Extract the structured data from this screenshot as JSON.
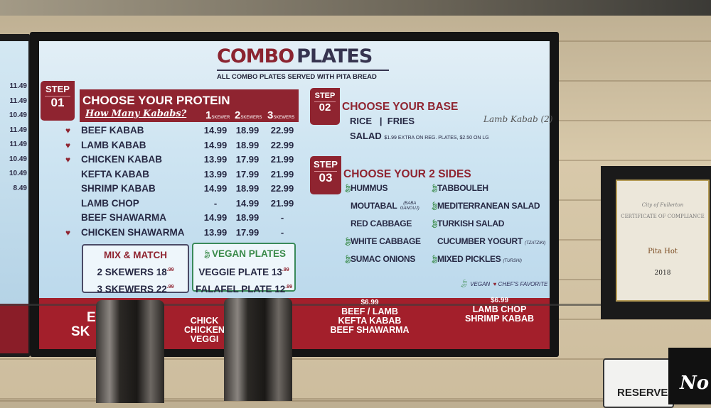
{
  "header": {
    "title_a": "COMBO",
    "title_b": "PLATES",
    "subtitle": "ALL COMBO PLATES SERVED WITH PITA BREAD"
  },
  "step1": {
    "label": "STEP",
    "num": "01",
    "title": "CHOOSE YOUR PROTEIN",
    "question": "How Many Kababs?",
    "columns": [
      {
        "n": "1",
        "unit": "SKEWER"
      },
      {
        "n": "2",
        "unit": "SKEWERS"
      },
      {
        "n": "3",
        "unit": "SKEWERS"
      }
    ],
    "items": [
      {
        "name": "BEEF KABAB",
        "fav": true,
        "prices": [
          "14.99",
          "18.99",
          "22.99"
        ]
      },
      {
        "name": "LAMB KABAB",
        "fav": true,
        "prices": [
          "14.99",
          "18.99",
          "22.99"
        ]
      },
      {
        "name": "CHICKEN KABAB",
        "fav": true,
        "prices": [
          "13.99",
          "17.99",
          "21.99"
        ]
      },
      {
        "name": "KEFTA KABAB",
        "fav": false,
        "prices": [
          "13.99",
          "17.99",
          "21.99"
        ]
      },
      {
        "name": "SHRIMP KABAB",
        "fav": false,
        "prices": [
          "14.99",
          "18.99",
          "22.99"
        ]
      },
      {
        "name": "LAMB CHOP",
        "fav": false,
        "prices": [
          "-",
          "14.99",
          "21.99"
        ]
      },
      {
        "name": "BEEF SHAWARMA",
        "fav": false,
        "prices": [
          "14.99",
          "18.99",
          "-"
        ]
      },
      {
        "name": "CHICKEN SHAWARMA",
        "fav": true,
        "prices": [
          "13.99",
          "17.99",
          "-"
        ]
      }
    ]
  },
  "mix": {
    "title": "MIX & MATCH",
    "l1": "2 SKEWERS",
    "p1": "18",
    "c1": ".99",
    "l2": "3 SKEWERS",
    "p2": "22",
    "c2": ".99"
  },
  "vegan": {
    "title": "VEGAN PLATES",
    "l1": "VEGGIE PLATE",
    "p1": "13",
    "c1": ".99",
    "l2": "FALAFEL PLATE",
    "p2": "12",
    "c2": ".99"
  },
  "step2": {
    "label": "STEP",
    "num": "02",
    "title": "CHOOSE YOUR BASE",
    "opt1": "RICE",
    "sep": "|",
    "opt2": "FRIES",
    "salad": "SALAD",
    "salad_note": "$1.99 EXTRA ON REG. PLATES, $2.50 ON LG",
    "handnote": "Lamb Kabab (2)"
  },
  "step3": {
    "label": "STEP",
    "num": "03",
    "title": "CHOOSE YOUR 2 SIDES",
    "left": [
      {
        "name": "HUMMUS",
        "vegan": true,
        "note": ""
      },
      {
        "name": "MOUTABAL",
        "vegan": false,
        "note": "(BABA GANOUJ)"
      },
      {
        "name": "RED CABBAGE",
        "vegan": false,
        "note": ""
      },
      {
        "name": "WHITE CABBAGE",
        "vegan": true,
        "note": ""
      },
      {
        "name": "SUMAC ONIONS",
        "vegan": true,
        "note": ""
      }
    ],
    "right": [
      {
        "name": "TABBOULEH",
        "vegan": true,
        "note": ""
      },
      {
        "name": "MEDITERRANEAN SALAD",
        "vegan": true,
        "note": ""
      },
      {
        "name": "TURKISH SALAD",
        "vegan": true,
        "note": ""
      },
      {
        "name": "CUCUMBER YOGURT",
        "vegan": false,
        "note": "(TZATZIKI)"
      },
      {
        "name": "MIXED PICKLES",
        "vegan": true,
        "note": "(TURSHI)"
      }
    ]
  },
  "legend": {
    "vegan": "VEGAN",
    "fav": "CHEF'S FAVORITE"
  },
  "band": {
    "left1": "E",
    "left2": "SK",
    "mid1": "CHICK",
    "mid2": "CHICKEN",
    "mid3": "VEGGI",
    "price1": "$6.99",
    "items1": [
      "BEEF / LAMB",
      "KEFTA KABAB",
      "BEEF SHAWARMA"
    ],
    "price2": "$6.99",
    "items2": [
      "LAMB CHOP",
      "SHRIMP KABAB"
    ]
  },
  "left_screen": {
    "prices": [
      "11.49",
      "11.49",
      "10.49",
      "11.49",
      "11.49",
      "10.49",
      "10.49",
      "8.49"
    ]
  },
  "certificate": {
    "header": "City of Fullerton",
    "title": "CERTIFICATE OF COMPLIANCE",
    "business": "Pita Hot",
    "year": "2018"
  },
  "signs": {
    "reserve": "RESERVE",
    "black": "No"
  },
  "colors": {
    "brand_red": "#8f2430",
    "navy_text": "#262843",
    "vegan_green": "#3a8a4a",
    "screen_bg": "#cfe5f2"
  }
}
